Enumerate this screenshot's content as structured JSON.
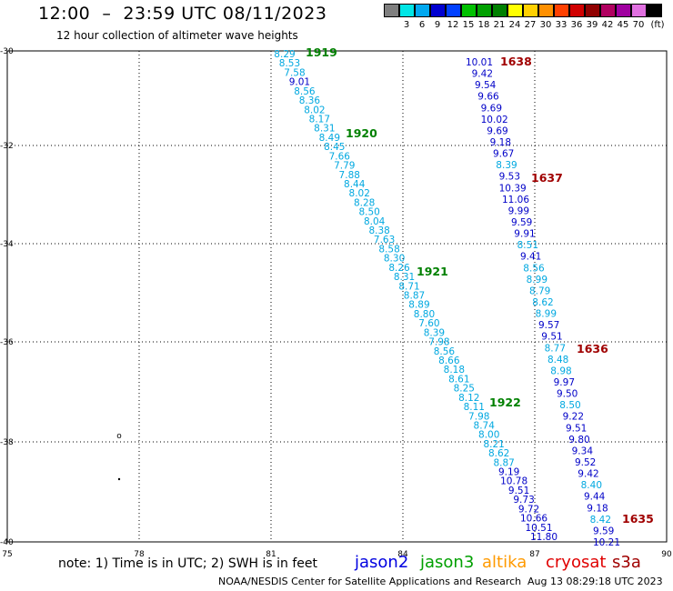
{
  "title": "12:00  –  23:59 UTC 08/11/2023",
  "subtitle": "12 hour collection of altimeter wave heights",
  "legend": {
    "unit": "(ft)",
    "items": [
      {
        "label": "",
        "color": "#7f7f7f"
      },
      {
        "label": "3",
        "color": "#00e5e5"
      },
      {
        "label": "6",
        "color": "#00a8f0"
      },
      {
        "label": "9",
        "color": "#0000d0"
      },
      {
        "label": "12",
        "color": "#0040ff"
      },
      {
        "label": "15",
        "color": "#00c000"
      },
      {
        "label": "18",
        "color": "#00a000"
      },
      {
        "label": "21",
        "color": "#008000"
      },
      {
        "label": "24",
        "color": "#ffff00"
      },
      {
        "label": "27",
        "color": "#ffd000"
      },
      {
        "label": "30",
        "color": "#ff9000"
      },
      {
        "label": "33",
        "color": "#ff4000"
      },
      {
        "label": "36",
        "color": "#d00000"
      },
      {
        "label": "39",
        "color": "#900000"
      },
      {
        "label": "42",
        "color": "#b00060"
      },
      {
        "label": "45",
        "color": "#a000a0"
      },
      {
        "label": "70",
        "color": "#e070e0"
      },
      {
        "label": "",
        "color": "#000000"
      }
    ]
  },
  "axes": {
    "lon_ticks": [
      "75",
      "78",
      "81",
      "84",
      "87",
      "90"
    ],
    "lat_ticks": [
      "-30",
      "-32",
      "-34",
      "-36",
      "-38",
      "-40"
    ]
  },
  "tracks": {
    "colors": {
      "light": "#00a8e0",
      "dark": "#0000c8",
      "label_green": "#008000",
      "label_red": "#a00000"
    },
    "a": {
      "labels": [
        {
          "text": "1919",
          "color": "green"
        },
        {
          "text": "1920",
          "color": "green"
        },
        {
          "text": "1921",
          "color": "green"
        },
        {
          "text": "1922",
          "color": "green"
        }
      ],
      "points": [
        {
          "v": "8.29",
          "c": "light"
        },
        {
          "v": "8.53",
          "c": "light"
        },
        {
          "v": "7.58",
          "c": "light"
        },
        {
          "v": "9.01",
          "c": "dark"
        },
        {
          "v": "8.56",
          "c": "light"
        },
        {
          "v": "8.36",
          "c": "light"
        },
        {
          "v": "8.02",
          "c": "light"
        },
        {
          "v": "8.17",
          "c": "light"
        },
        {
          "v": "8.31",
          "c": "light"
        },
        {
          "v": "8.49",
          "c": "light"
        },
        {
          "v": "8.45",
          "c": "light"
        },
        {
          "v": "7.66",
          "c": "light"
        },
        {
          "v": "7.79",
          "c": "light"
        },
        {
          "v": "7.88",
          "c": "light"
        },
        {
          "v": "8.44",
          "c": "light"
        },
        {
          "v": "8.02",
          "c": "light"
        },
        {
          "v": "8.28",
          "c": "light"
        },
        {
          "v": "8.50",
          "c": "light"
        },
        {
          "v": "8.04",
          "c": "light"
        },
        {
          "v": "8.38",
          "c": "light"
        },
        {
          "v": "7.63",
          "c": "light"
        },
        {
          "v": "8.58",
          "c": "light"
        },
        {
          "v": "8.30",
          "c": "light"
        },
        {
          "v": "8.26",
          "c": "light"
        },
        {
          "v": "8.31",
          "c": "light"
        },
        {
          "v": "8.71",
          "c": "light"
        },
        {
          "v": "8.87",
          "c": "light"
        },
        {
          "v": "8.89",
          "c": "light"
        },
        {
          "v": "8.80",
          "c": "light"
        },
        {
          "v": "7.60",
          "c": "light"
        },
        {
          "v": "8.39",
          "c": "light"
        },
        {
          "v": "7.98",
          "c": "light"
        },
        {
          "v": "8.56",
          "c": "light"
        },
        {
          "v": "8.66",
          "c": "light"
        },
        {
          "v": "8.18",
          "c": "light"
        },
        {
          "v": "8.61",
          "c": "light"
        },
        {
          "v": "8.25",
          "c": "light"
        },
        {
          "v": "8.12",
          "c": "light"
        },
        {
          "v": "8.11",
          "c": "light"
        },
        {
          "v": "7.98",
          "c": "light"
        },
        {
          "v": "8.74",
          "c": "light"
        },
        {
          "v": "8.00",
          "c": "light"
        },
        {
          "v": "8.21",
          "c": "light"
        },
        {
          "v": "8.62",
          "c": "light"
        },
        {
          "v": "8.87",
          "c": "light"
        },
        {
          "v": "9.19",
          "c": "dark"
        },
        {
          "v": "10.78",
          "c": "dark"
        },
        {
          "v": "9.51",
          "c": "dark"
        },
        {
          "v": "9.73",
          "c": "dark"
        },
        {
          "v": "9.72",
          "c": "dark"
        },
        {
          "v": "10.66",
          "c": "dark"
        },
        {
          "v": "10.51",
          "c": "dark"
        },
        {
          "v": "11.80",
          "c": "dark"
        }
      ]
    },
    "b": {
      "labels": [
        {
          "text": "1638",
          "color": "red"
        },
        {
          "text": "1637",
          "color": "red"
        },
        {
          "text": "1636",
          "color": "red"
        },
        {
          "text": "1635",
          "color": "red"
        }
      ],
      "points": [
        {
          "v": "10.01",
          "c": "dark"
        },
        {
          "v": "9.42",
          "c": "dark"
        },
        {
          "v": "9.54",
          "c": "dark"
        },
        {
          "v": "9.66",
          "c": "dark"
        },
        {
          "v": "9.69",
          "c": "dark"
        },
        {
          "v": "10.02",
          "c": "dark"
        },
        {
          "v": "9.69",
          "c": "dark"
        },
        {
          "v": "9.18",
          "c": "dark"
        },
        {
          "v": "9.67",
          "c": "dark"
        },
        {
          "v": "8.39",
          "c": "light"
        },
        {
          "v": "9.53",
          "c": "dark"
        },
        {
          "v": "10.39",
          "c": "dark"
        },
        {
          "v": "11.06",
          "c": "dark"
        },
        {
          "v": "9.99",
          "c": "dark"
        },
        {
          "v": "9.59",
          "c": "dark"
        },
        {
          "v": "9.91",
          "c": "dark"
        },
        {
          "v": "8.51",
          "c": "light"
        },
        {
          "v": "9.41",
          "c": "dark"
        },
        {
          "v": "8.56",
          "c": "light"
        },
        {
          "v": "8.99",
          "c": "light"
        },
        {
          "v": "8.79",
          "c": "light"
        },
        {
          "v": "8.62",
          "c": "light"
        },
        {
          "v": "8.99",
          "c": "light"
        },
        {
          "v": "9.57",
          "c": "dark"
        },
        {
          "v": "9.51",
          "c": "dark"
        },
        {
          "v": "8.77",
          "c": "light"
        },
        {
          "v": "8.48",
          "c": "light"
        },
        {
          "v": "8.98",
          "c": "light"
        },
        {
          "v": "9.97",
          "c": "dark"
        },
        {
          "v": "9.50",
          "c": "dark"
        },
        {
          "v": "8.50",
          "c": "light"
        },
        {
          "v": "9.22",
          "c": "dark"
        },
        {
          "v": "9.51",
          "c": "dark"
        },
        {
          "v": "9.80",
          "c": "dark"
        },
        {
          "v": "9.34",
          "c": "dark"
        },
        {
          "v": "9.52",
          "c": "dark"
        },
        {
          "v": "9.42",
          "c": "dark"
        },
        {
          "v": "8.40",
          "c": "light"
        },
        {
          "v": "9.44",
          "c": "dark"
        },
        {
          "v": "9.18",
          "c": "dark"
        },
        {
          "v": "8.42",
          "c": "light"
        },
        {
          "v": "9.59",
          "c": "dark"
        },
        {
          "v": "10.21",
          "c": "dark"
        }
      ]
    }
  },
  "note": "note:  1) Time is in UTC;  2) SWH is in feet",
  "satellites": [
    {
      "name": "jason2",
      "color": "#0000e0"
    },
    {
      "name": "jason3",
      "color": "#00a000"
    },
    {
      "name": "altika",
      "color": "#ff9a00"
    },
    {
      "name": "cryosat",
      "color": "#e00000"
    },
    {
      "name": "s3a",
      "color": "#a00000"
    }
  ],
  "footer_left": "NOAA/NESDIS Center for Satellite Applications and Research",
  "footer_right": "Aug 13 08:29:18 UTC 2023"
}
